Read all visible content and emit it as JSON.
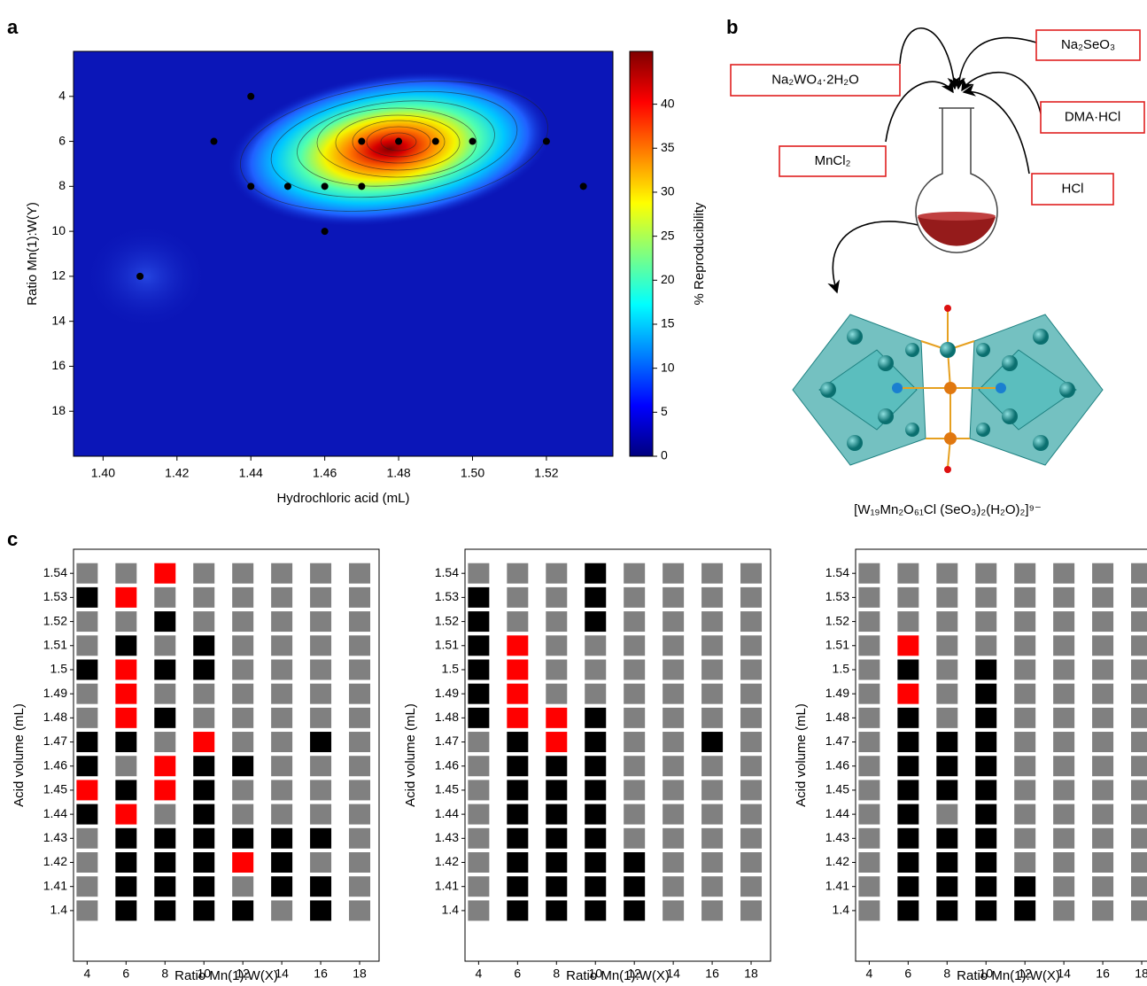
{
  "panel_labels": [
    "a",
    "b",
    "c"
  ],
  "chart_data": [
    {
      "type": "heatmap",
      "xlabel": "Hydrochloric acid (mL)",
      "ylabel": "Ratio Mn(1):W(Y)",
      "xlim": [
        1.392,
        1.538
      ],
      "xticks": [
        {
          "value": 1.4,
          "label": "1.40"
        },
        1.42,
        1.44,
        1.46,
        1.48,
        {
          "value": 1.5,
          "label": "1.50"
        },
        1.52
      ],
      "ylim": [
        2,
        20
      ],
      "y_inverted": true,
      "yticks": [
        4,
        6,
        8,
        10,
        12,
        14,
        16,
        18
      ],
      "colorbar": {
        "label": "% Reproducibility",
        "lim": [
          0,
          46
        ],
        "ticks": [
          0,
          5,
          10,
          15,
          20,
          25,
          30,
          35,
          40
        ]
      },
      "points": {
        "color": "#000000",
        "x": [
          1.44,
          1.43,
          1.47,
          1.48,
          1.49,
          1.5,
          1.52,
          1.44,
          1.45,
          1.46,
          1.47,
          1.53,
          1.46,
          1.41
        ],
        "y": [
          4,
          6,
          6,
          6,
          6,
          6,
          6,
          8,
          8,
          8,
          8,
          8,
          10,
          12
        ]
      }
    },
    {
      "type": "grid",
      "xlabel": "Ratio Mn(1):W(X)",
      "ylabel": "Acid volume (mL)",
      "xlim": [
        3.3,
        19
      ],
      "xticks": [
        4,
        6,
        8,
        10,
        12,
        14,
        16,
        18
      ],
      "ylim": [
        1.379,
        1.55
      ],
      "yticks": [
        1.4,
        1.41,
        1.42,
        1.43,
        1.44,
        1.45,
        1.46,
        1.47,
        1.48,
        1.49,
        1.5,
        1.51,
        1.52,
        1.53,
        1.54
      ],
      "cells": [
        [
          "gray",
          "black",
          "black",
          "black",
          "black",
          "gray",
          "black",
          "gray"
        ],
        [
          "gray",
          "black",
          "black",
          "black",
          "gray",
          "black",
          "black",
          "gray"
        ],
        [
          "gray",
          "black",
          "black",
          "black",
          "red",
          "black",
          "gray",
          "gray"
        ],
        [
          "gray",
          "black",
          "black",
          "black",
          "black",
          "black",
          "black",
          "gray"
        ],
        [
          "black",
          "red",
          "gray",
          "black",
          "gray",
          "gray",
          "gray",
          "gray"
        ],
        [
          "red",
          "black",
          "red",
          "black",
          "gray",
          "gray",
          "gray",
          "gray"
        ],
        [
          "black",
          "gray",
          "red",
          "black",
          "black",
          "gray",
          "gray",
          "gray"
        ],
        [
          "black",
          "black",
          "gray",
          "red",
          "gray",
          "gray",
          "black",
          "gray"
        ],
        [
          "gray",
          "red",
          "black",
          "gray",
          "gray",
          "gray",
          "gray",
          "gray"
        ],
        [
          "gray",
          "red",
          "gray",
          "gray",
          "gray",
          "gray",
          "gray",
          "gray"
        ],
        [
          "black",
          "red",
          "black",
          "black",
          "gray",
          "gray",
          "gray",
          "gray"
        ],
        [
          "gray",
          "black",
          "gray",
          "black",
          "gray",
          "gray",
          "gray",
          "gray"
        ],
        [
          "gray",
          "gray",
          "black",
          "gray",
          "gray",
          "gray",
          "gray",
          "gray"
        ],
        [
          "black",
          "red",
          "gray",
          "gray",
          "gray",
          "gray",
          "gray",
          "gray"
        ],
        [
          "gray",
          "gray",
          "red",
          "gray",
          "gray",
          "gray",
          "gray",
          "gray"
        ]
      ]
    },
    {
      "type": "grid",
      "xlabel": "Ratio Mn(1):W(X)",
      "ylabel": "Acid volume (mL)",
      "xlim": [
        3.3,
        19
      ],
      "xticks": [
        4,
        6,
        8,
        10,
        12,
        14,
        16,
        18
      ],
      "ylim": [
        1.379,
        1.55
      ],
      "yticks": [
        1.4,
        1.41,
        1.42,
        1.43,
        1.44,
        1.45,
        1.46,
        1.47,
        1.48,
        1.49,
        1.5,
        1.51,
        1.52,
        1.53,
        1.54
      ],
      "cells": [
        [
          "gray",
          "black",
          "black",
          "black",
          "black",
          "gray",
          "gray",
          "gray"
        ],
        [
          "gray",
          "black",
          "black",
          "black",
          "black",
          "gray",
          "gray",
          "gray"
        ],
        [
          "gray",
          "black",
          "black",
          "black",
          "black",
          "gray",
          "gray",
          "gray"
        ],
        [
          "gray",
          "black",
          "black",
          "black",
          "gray",
          "gray",
          "gray",
          "gray"
        ],
        [
          "gray",
          "black",
          "black",
          "black",
          "gray",
          "gray",
          "gray",
          "gray"
        ],
        [
          "gray",
          "black",
          "black",
          "black",
          "gray",
          "gray",
          "gray",
          "gray"
        ],
        [
          "gray",
          "black",
          "black",
          "black",
          "gray",
          "gray",
          "gray",
          "gray"
        ],
        [
          "gray",
          "black",
          "red",
          "black",
          "gray",
          "gray",
          "black",
          "gray"
        ],
        [
          "black",
          "red",
          "red",
          "black",
          "gray",
          "gray",
          "gray",
          "gray"
        ],
        [
          "black",
          "red",
          "gray",
          "gray",
          "gray",
          "gray",
          "gray",
          "gray"
        ],
        [
          "black",
          "red",
          "gray",
          "gray",
          "gray",
          "gray",
          "gray",
          "gray"
        ],
        [
          "black",
          "red",
          "gray",
          "gray",
          "gray",
          "gray",
          "gray",
          "gray"
        ],
        [
          "black",
          "gray",
          "gray",
          "black",
          "gray",
          "gray",
          "gray",
          "gray"
        ],
        [
          "black",
          "gray",
          "gray",
          "black",
          "gray",
          "gray",
          "gray",
          "gray"
        ],
        [
          "gray",
          "gray",
          "gray",
          "black",
          "gray",
          "gray",
          "gray",
          "gray"
        ]
      ]
    },
    {
      "type": "grid",
      "xlabel": "Ratio Mn(1):W(X)",
      "ylabel": "Acid volume (mL)",
      "xlim": [
        3.3,
        19
      ],
      "xticks": [
        4,
        6,
        8,
        10,
        12,
        14,
        16,
        18
      ],
      "ylim": [
        1.379,
        1.55
      ],
      "yticks": [
        1.4,
        1.41,
        1.42,
        1.43,
        1.44,
        1.45,
        1.46,
        1.47,
        1.48,
        1.49,
        1.5,
        1.51,
        1.52,
        1.53,
        1.54
      ],
      "cells": [
        [
          "gray",
          "black",
          "black",
          "black",
          "black",
          "gray",
          "gray",
          "gray"
        ],
        [
          "gray",
          "black",
          "black",
          "black",
          "black",
          "gray",
          "gray",
          "gray"
        ],
        [
          "gray",
          "black",
          "black",
          "black",
          "gray",
          "gray",
          "gray",
          "gray"
        ],
        [
          "gray",
          "black",
          "black",
          "black",
          "gray",
          "gray",
          "gray",
          "gray"
        ],
        [
          "gray",
          "black",
          "gray",
          "black",
          "gray",
          "gray",
          "gray",
          "gray"
        ],
        [
          "gray",
          "black",
          "black",
          "black",
          "gray",
          "gray",
          "gray",
          "gray"
        ],
        [
          "gray",
          "black",
          "black",
          "black",
          "gray",
          "gray",
          "gray",
          "gray"
        ],
        [
          "gray",
          "black",
          "black",
          "black",
          "gray",
          "gray",
          "gray",
          "gray"
        ],
        [
          "gray",
          "black",
          "gray",
          "black",
          "gray",
          "gray",
          "gray",
          "gray"
        ],
        [
          "gray",
          "red",
          "gray",
          "black",
          "gray",
          "gray",
          "gray",
          "gray"
        ],
        [
          "gray",
          "black",
          "gray",
          "black",
          "gray",
          "gray",
          "gray",
          "gray"
        ],
        [
          "gray",
          "red",
          "gray",
          "gray",
          "gray",
          "gray",
          "gray",
          "gray"
        ],
        [
          "gray",
          "gray",
          "gray",
          "gray",
          "gray",
          "gray",
          "gray",
          "gray"
        ],
        [
          "gray",
          "gray",
          "gray",
          "gray",
          "gray",
          "gray",
          "gray",
          "gray"
        ],
        [
          "gray",
          "gray",
          "gray",
          "gray",
          "gray",
          "gray",
          "gray",
          "gray"
        ]
      ]
    }
  ],
  "diagram": {
    "reagents": [
      "Na₂WO₄·2H₂O",
      "Na₂SeO₃",
      "DMA·HCl",
      "MnCl₂",
      "HCl"
    ],
    "product": "[W₁₉Mn₂O₆₁Cl (SeO₃)₂(H₂O)₂]⁹⁻"
  }
}
